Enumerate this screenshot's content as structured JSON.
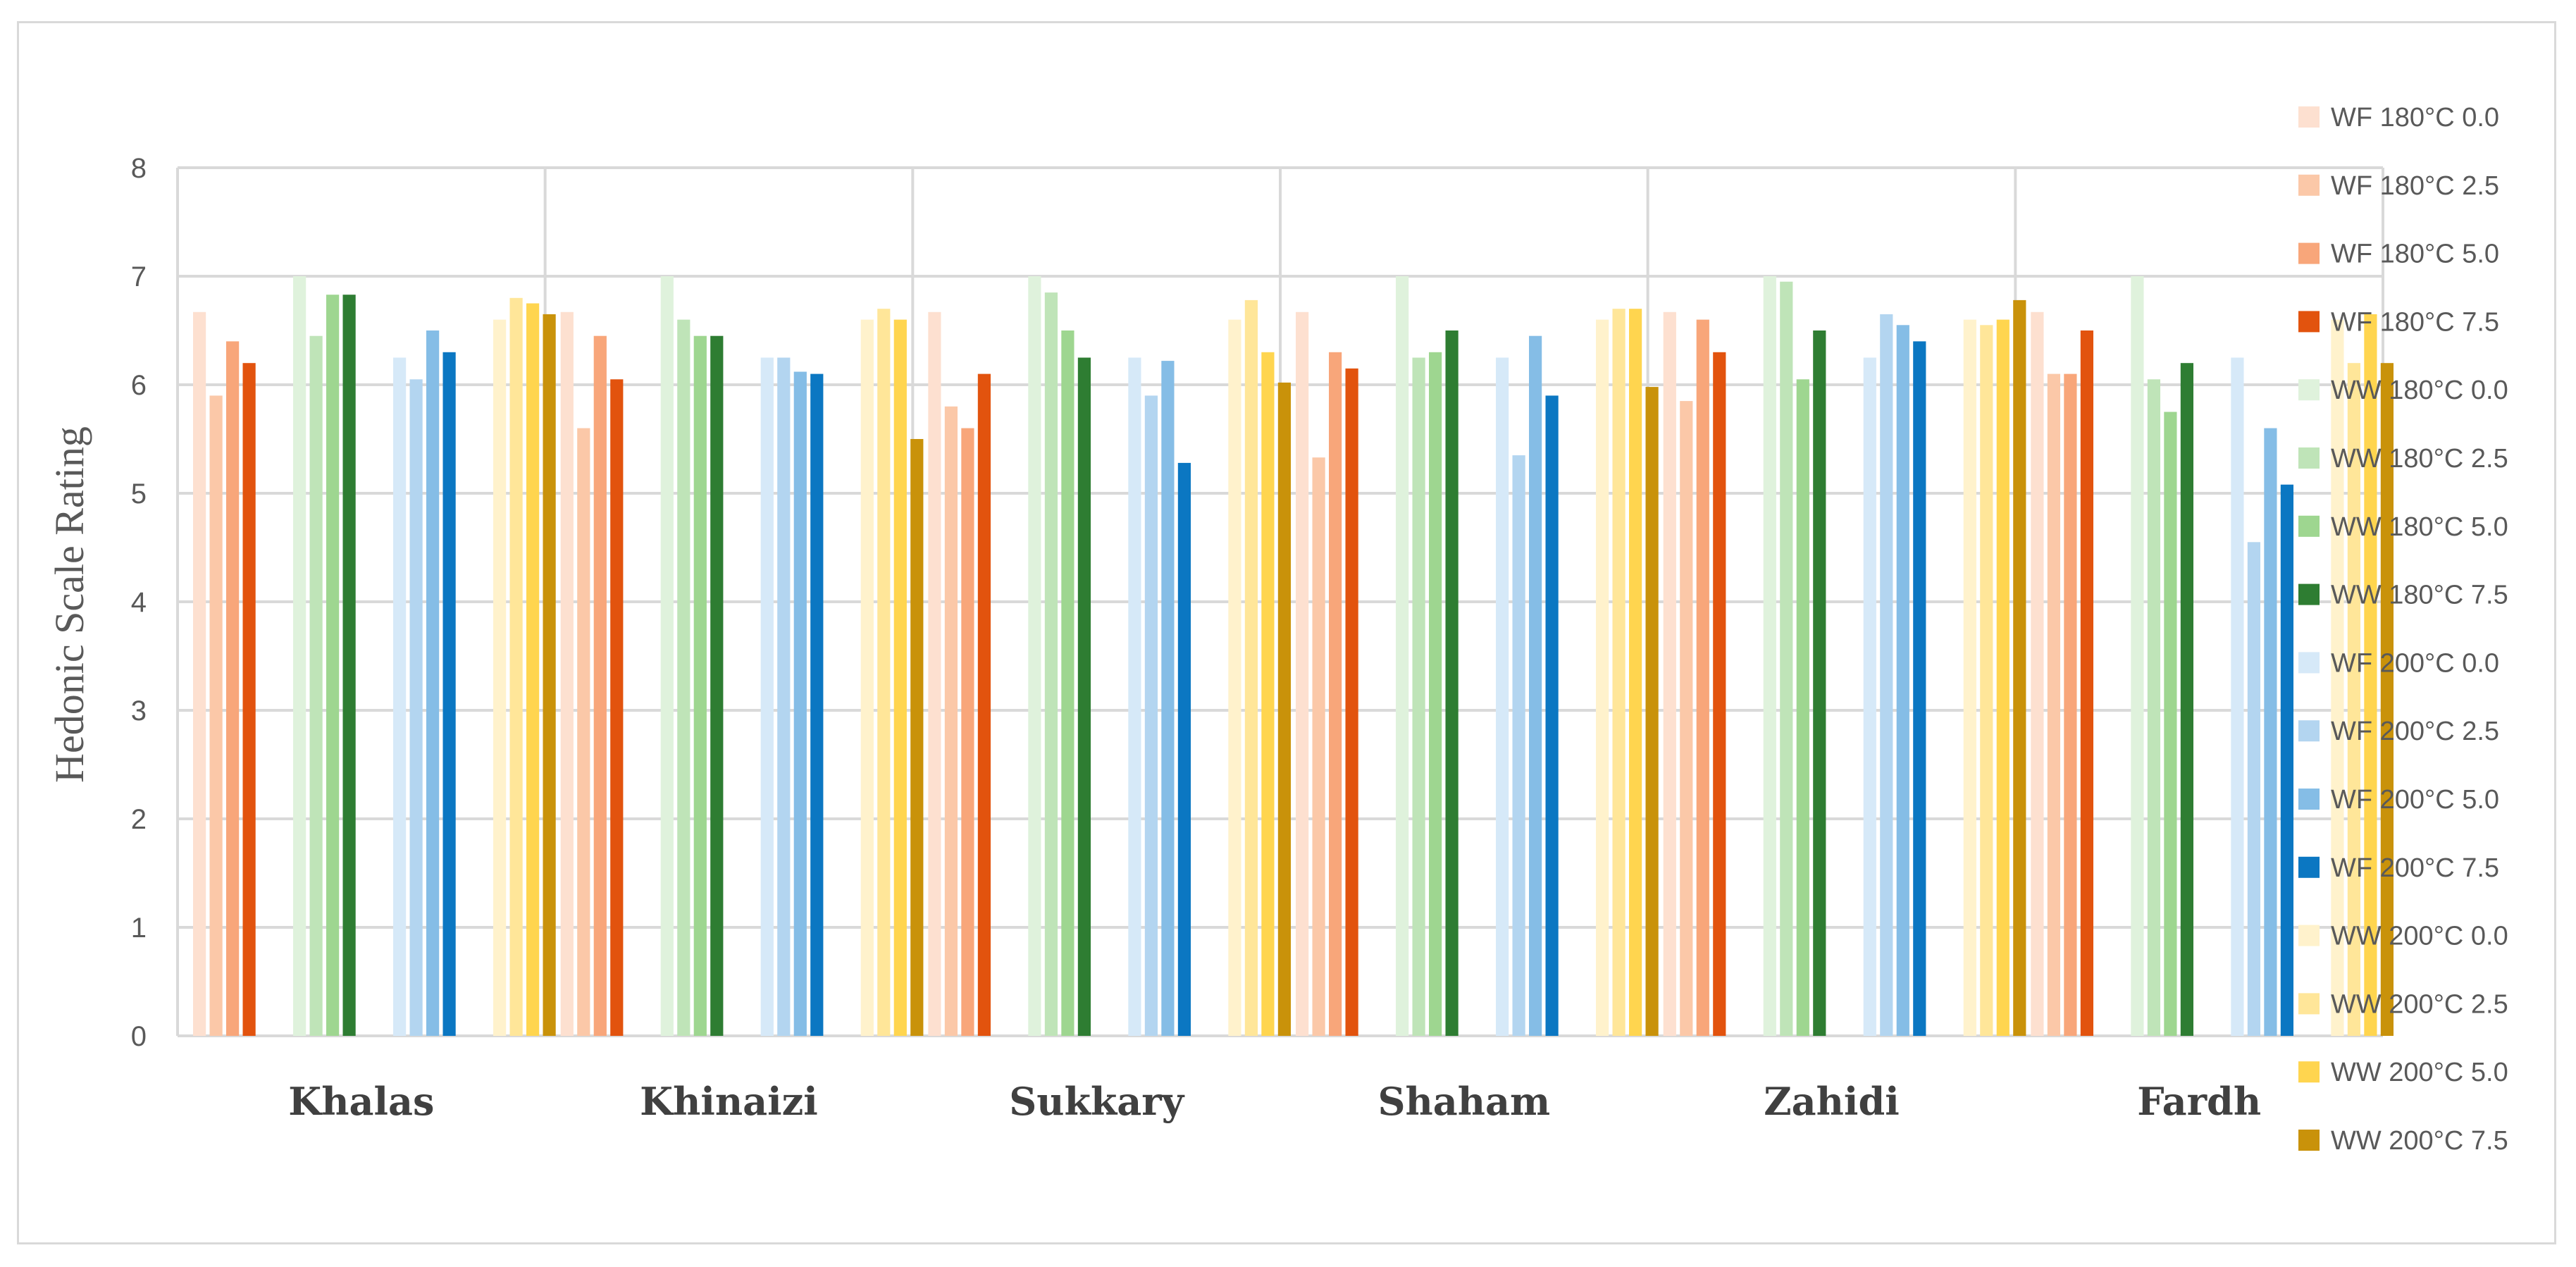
{
  "chart_data": {
    "type": "bar",
    "title": "",
    "xlabel": "",
    "ylabel": "Hedonic Scale Rating",
    "ylim": [
      0,
      8
    ],
    "yticks": [
      "0",
      "1",
      "2",
      "3",
      "4",
      "5",
      "6",
      "7",
      "8"
    ],
    "grid": true,
    "legend_position": "right",
    "categories": [
      "Khalas",
      "Khinaizi",
      "Sukkary",
      "Shaham",
      "Zahidi",
      "Fardh"
    ],
    "series": [
      {
        "name": "WF 180°C 0.0",
        "color": "#fde0d0",
        "values": [
          6.67,
          6.67,
          6.67,
          6.67,
          6.67,
          6.67
        ]
      },
      {
        "name": "WF 180°C 2.5",
        "color": "#fbc8a8",
        "values": [
          5.9,
          5.6,
          5.8,
          5.33,
          5.85,
          6.1
        ]
      },
      {
        "name": "WF 180°C 5.0",
        "color": "#f8a67a",
        "values": [
          6.4,
          6.45,
          5.6,
          6.3,
          6.6,
          6.1
        ]
      },
      {
        "name": "WF 180°C 7.5",
        "color": "#e2530e",
        "values": [
          6.2,
          6.05,
          6.1,
          6.15,
          6.3,
          6.5
        ]
      },
      {
        "name": "WW 180°C 0.0",
        "color": "#dff2dc",
        "values": [
          7.0,
          7.0,
          7.0,
          7.0,
          7.0,
          7.0
        ]
      },
      {
        "name": "WW 180°C 2.5",
        "color": "#bfe4b8",
        "values": [
          6.45,
          6.6,
          6.85,
          6.25,
          6.95,
          6.05
        ]
      },
      {
        "name": "WW 180°C 5.0",
        "color": "#9ed690",
        "values": [
          6.83,
          6.45,
          6.5,
          6.3,
          6.05,
          5.75
        ]
      },
      {
        "name": "WW 180°C 7.5",
        "color": "#2e7d32",
        "values": [
          6.83,
          6.45,
          6.25,
          6.5,
          6.5,
          6.2
        ]
      },
      {
        "name": "WF 200°C 0.0",
        "color": "#d6e9f8",
        "values": [
          6.25,
          6.25,
          6.25,
          6.25,
          6.25,
          6.25
        ]
      },
      {
        "name": "WF 200°C 2.5",
        "color": "#b3d5f0",
        "values": [
          6.05,
          6.25,
          5.9,
          5.35,
          6.65,
          4.55
        ]
      },
      {
        "name": "WF 200°C 5.0",
        "color": "#85bde6",
        "values": [
          6.5,
          6.12,
          6.22,
          6.45,
          6.55,
          5.6
        ]
      },
      {
        "name": "WF 200°C 7.5",
        "color": "#0b77c2",
        "values": [
          6.3,
          6.1,
          5.28,
          5.9,
          6.4,
          5.08
        ]
      },
      {
        "name": "WW 200°C 0.0",
        "color": "#fff2cc",
        "values": [
          6.6,
          6.6,
          6.6,
          6.6,
          6.6,
          6.6
        ]
      },
      {
        "name": "WW 200°C 2.5",
        "color": "#ffe699",
        "values": [
          6.8,
          6.7,
          6.78,
          6.7,
          6.55,
          6.2
        ]
      },
      {
        "name": "WW 200°C 5.0",
        "color": "#ffd54f",
        "values": [
          6.75,
          6.6,
          6.3,
          6.7,
          6.6,
          6.65
        ]
      },
      {
        "name": "WW 200°C 7.5",
        "color": "#c9920a",
        "values": [
          6.65,
          5.5,
          6.02,
          5.98,
          6.78,
          6.2
        ]
      }
    ]
  }
}
